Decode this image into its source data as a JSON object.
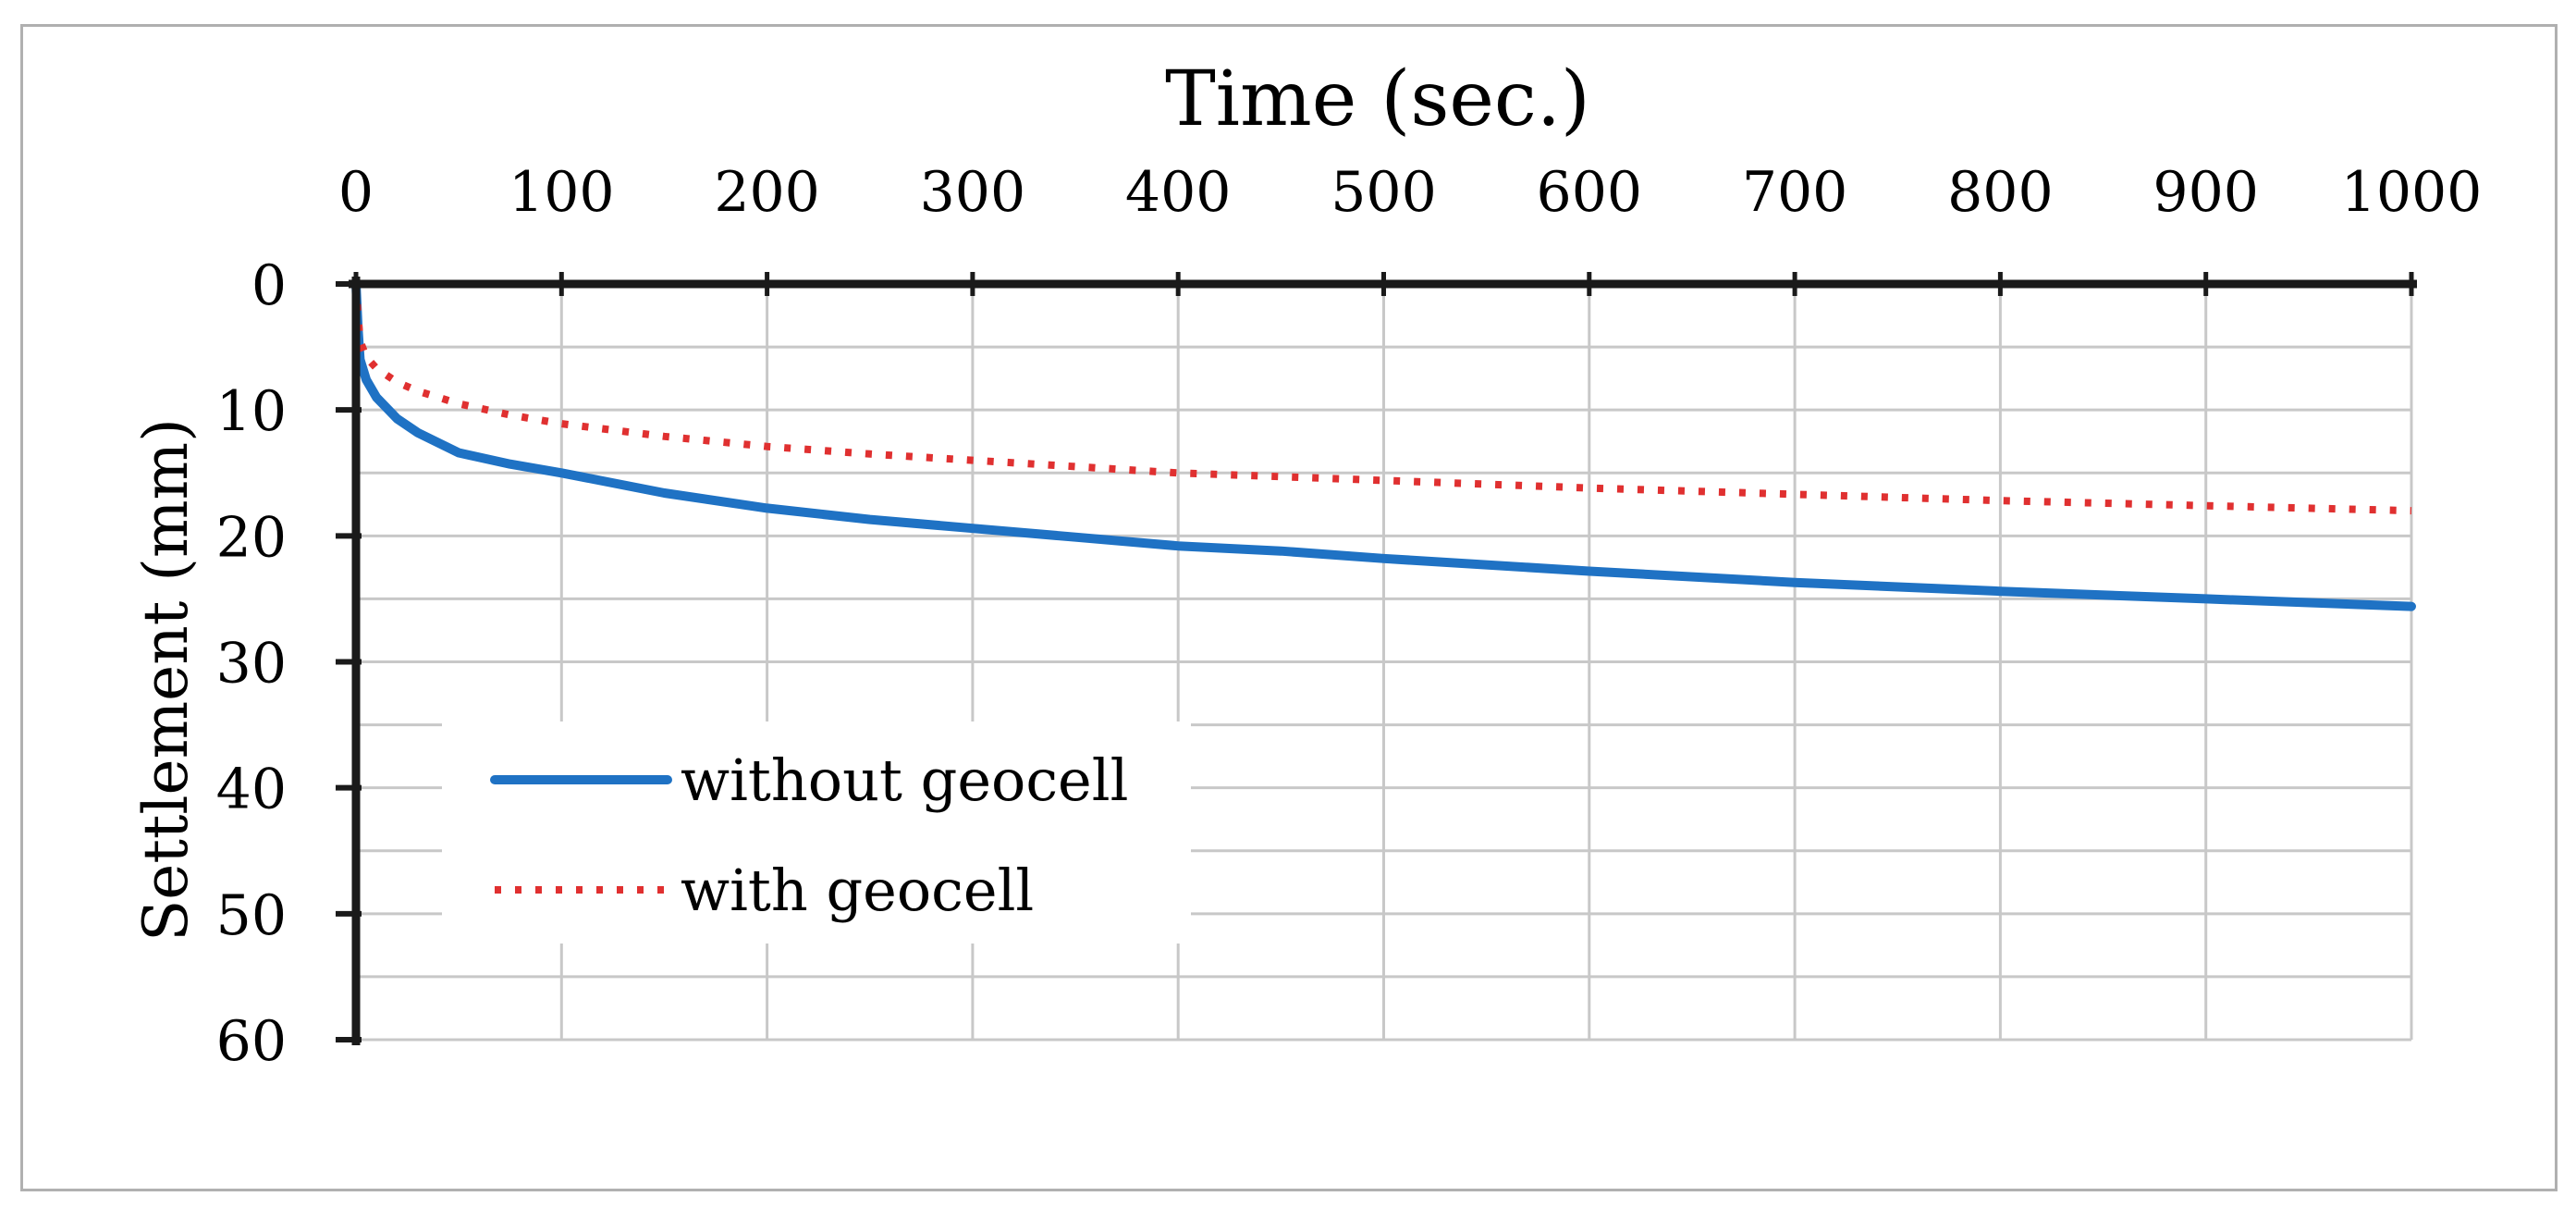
{
  "chart_data": {
    "type": "line",
    "xlabel": "Time (sec.)",
    "ylabel": "Settlement (mm)",
    "xlim": [
      0,
      1000
    ],
    "ylim": [
      0,
      60
    ],
    "y_axis_inverted": true,
    "x_axis_position": "top",
    "x_ticks": [
      "0",
      "100",
      "200",
      "300",
      "400",
      "500",
      "600",
      "700",
      "800",
      "900",
      "1000"
    ],
    "y_ticks": [
      "0",
      "10",
      "20",
      "30",
      "40",
      "50",
      "60"
    ],
    "grid": true,
    "legend_position": "lower-left",
    "series": [
      {
        "name": "without geocell",
        "style": "solid",
        "color": "#1f72c4",
        "x": [
          0,
          1,
          2,
          5,
          10,
          20,
          30,
          50,
          75,
          100,
          150,
          200,
          250,
          300,
          350,
          400,
          450,
          500,
          600,
          700,
          800,
          900,
          1000
        ],
        "y": [
          0,
          3.5,
          6.0,
          7.6,
          9.0,
          10.7,
          11.8,
          13.4,
          14.3,
          15.0,
          16.6,
          17.8,
          18.7,
          19.4,
          20.1,
          20.8,
          21.2,
          21.8,
          22.8,
          23.7,
          24.4,
          25.0,
          25.6
        ]
      },
      {
        "name": "with geocell",
        "style": "dotted",
        "color": "#e03030",
        "x": [
          0,
          1,
          2,
          5,
          10,
          20,
          30,
          50,
          75,
          100,
          150,
          200,
          250,
          300,
          350,
          400,
          450,
          500,
          600,
          700,
          800,
          900,
          1000
        ],
        "y": [
          0,
          2.5,
          4.5,
          5.8,
          6.7,
          7.8,
          8.5,
          9.5,
          10.4,
          11.1,
          12.1,
          12.9,
          13.5,
          14.0,
          14.5,
          15.0,
          15.3,
          15.6,
          16.2,
          16.7,
          17.2,
          17.6,
          18.0
        ]
      }
    ]
  }
}
